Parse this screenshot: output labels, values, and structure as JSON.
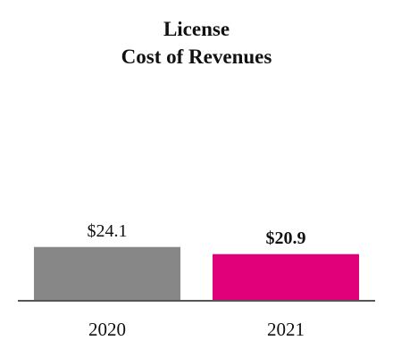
{
  "chart_data": {
    "type": "bar",
    "title": [
      "License",
      "Cost of Revenues"
    ],
    "categories": [
      "2020",
      "2021"
    ],
    "values": [
      24.1,
      20.9
    ],
    "value_labels": [
      "$24.1",
      "$20.9"
    ],
    "value_label_bold": [
      false,
      true
    ],
    "colors": [
      "#878787",
      "#e2007a"
    ],
    "axis_color": "#555555",
    "ylim": [
      0,
      120
    ],
    "grid": false,
    "legend": "none"
  }
}
